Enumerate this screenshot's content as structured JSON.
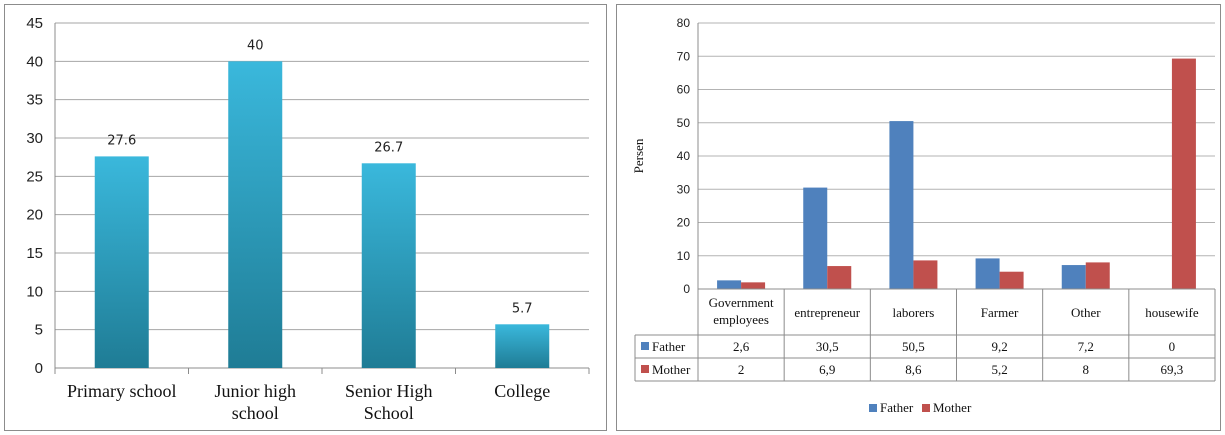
{
  "chart_data": [
    {
      "type": "bar",
      "categories": [
        [
          "Primary school"
        ],
        [
          "Junior high",
          "school"
        ],
        [
          "Senior High",
          "School"
        ],
        [
          "College"
        ]
      ],
      "values": [
        27.6,
        40,
        26.7,
        5.7
      ],
      "data_labels": [
        "27.6",
        "40",
        "26.7",
        "5.7"
      ],
      "ylim": [
        0,
        45
      ],
      "yticks": [
        0,
        5,
        10,
        15,
        20,
        25,
        30,
        35,
        40,
        45
      ],
      "grid": true,
      "colors": {
        "bar_top": "#3ab8dc",
        "bar_bottom": "#1f7c95"
      }
    },
    {
      "type": "bar",
      "ylabel": "Persen",
      "categories": [
        [
          "Government",
          "employees"
        ],
        [
          "entrepreneur"
        ],
        [
          "laborers"
        ],
        [
          "Farmer"
        ],
        [
          "Other"
        ],
        [
          "housewife"
        ]
      ],
      "series": [
        {
          "name": "Father",
          "values": [
            2.6,
            30.5,
            50.5,
            9.2,
            7.2,
            0
          ],
          "labels": [
            "2,6",
            "30,5",
            "50,5",
            "9,2",
            "7,2",
            "0"
          ],
          "color": "#4f81bd"
        },
        {
          "name": "Mother",
          "values": [
            2,
            6.9,
            8.6,
            5.2,
            8,
            69.3
          ],
          "labels": [
            "2",
            "6,9",
            "8,6",
            "5,2",
            "8",
            "69,3"
          ],
          "color": "#c0504d"
        }
      ],
      "ylim": [
        0,
        80
      ],
      "yticks": [
        0,
        10,
        20,
        30,
        40,
        50,
        60,
        70,
        80
      ],
      "grid": true,
      "data_table": true,
      "legend": "bottom"
    }
  ]
}
